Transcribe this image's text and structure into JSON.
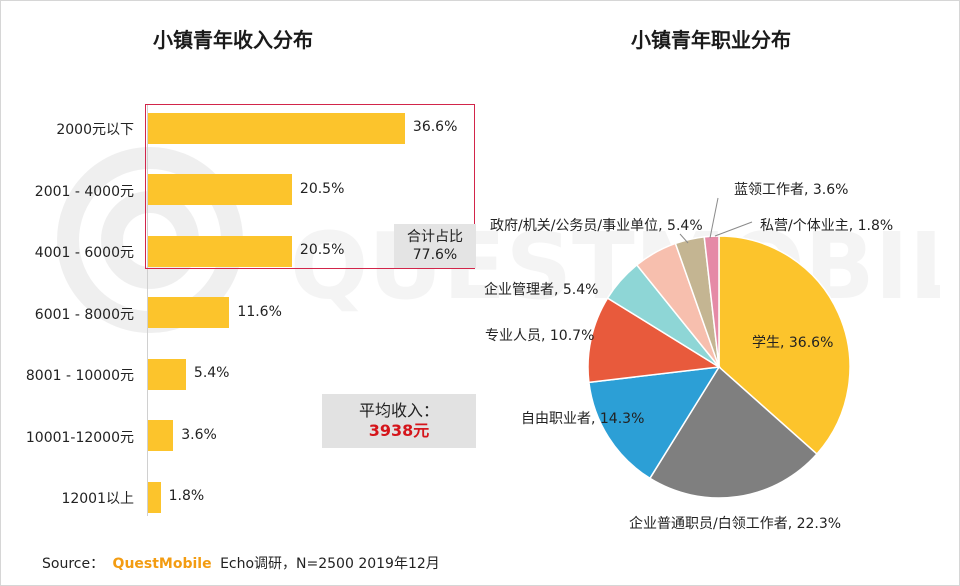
{
  "source": {
    "prefix": "Source：",
    "brand": "QuestMobile",
    "suffix": "Echo调研，N=2500 2019年12月"
  },
  "watermark": {
    "text": "QUESTMOBILE"
  },
  "chart_data": [
    {
      "type": "bar",
      "orientation": "horizontal",
      "title": "小镇青年收入分布",
      "categories": [
        "2000元以下",
        "2001 - 4000元",
        "4001 - 6000元",
        "6001 - 8000元",
        "8001 - 10000元",
        "10001-12000元",
        "12001以上"
      ],
      "values": [
        36.6,
        20.5,
        20.5,
        11.6,
        5.4,
        3.6,
        1.8
      ],
      "value_labels": [
        "36.6%",
        "20.5%",
        "20.5%",
        "11.6%",
        "5.4%",
        "3.6%",
        "1.8%"
      ],
      "color": "#fcc42c",
      "xlim": [
        0,
        50
      ],
      "grid": false,
      "annotations": {
        "highlight_label_1": "合计占比",
        "highlight_label_2": "77.6%",
        "average_label": "平均收入：",
        "average_value": "3938元"
      }
    },
    {
      "type": "pie",
      "title": "小镇青年职业分布",
      "labels": [
        "学生",
        "企业普通职员/白领工作者",
        "自由职业者",
        "专业人员",
        "企业管理者",
        "政府/机关/公务员/事业单位",
        "蓝领工作者",
        "私营/个体业主"
      ],
      "values": [
        36.6,
        22.3,
        14.3,
        10.7,
        5.4,
        5.4,
        3.6,
        1.8
      ],
      "slice_labels": [
        "学生, 36.6%",
        "企业普通职员/白领工作者, 22.3%",
        "自由职业者, 14.3%",
        "专业人员, 10.7%",
        "企业管理者, 5.4%",
        "政府/机关/公务员/事业单位, 5.4%",
        "蓝领工作者, 3.6%",
        "私营/个体业主, 1.8%"
      ],
      "colors": [
        "#fcc42c",
        "#7f7f7f",
        "#2c9fd6",
        "#e85a3c",
        "#8ed6d6",
        "#f7bfae",
        "#c4b592",
        "#e58aa6"
      ]
    }
  ]
}
